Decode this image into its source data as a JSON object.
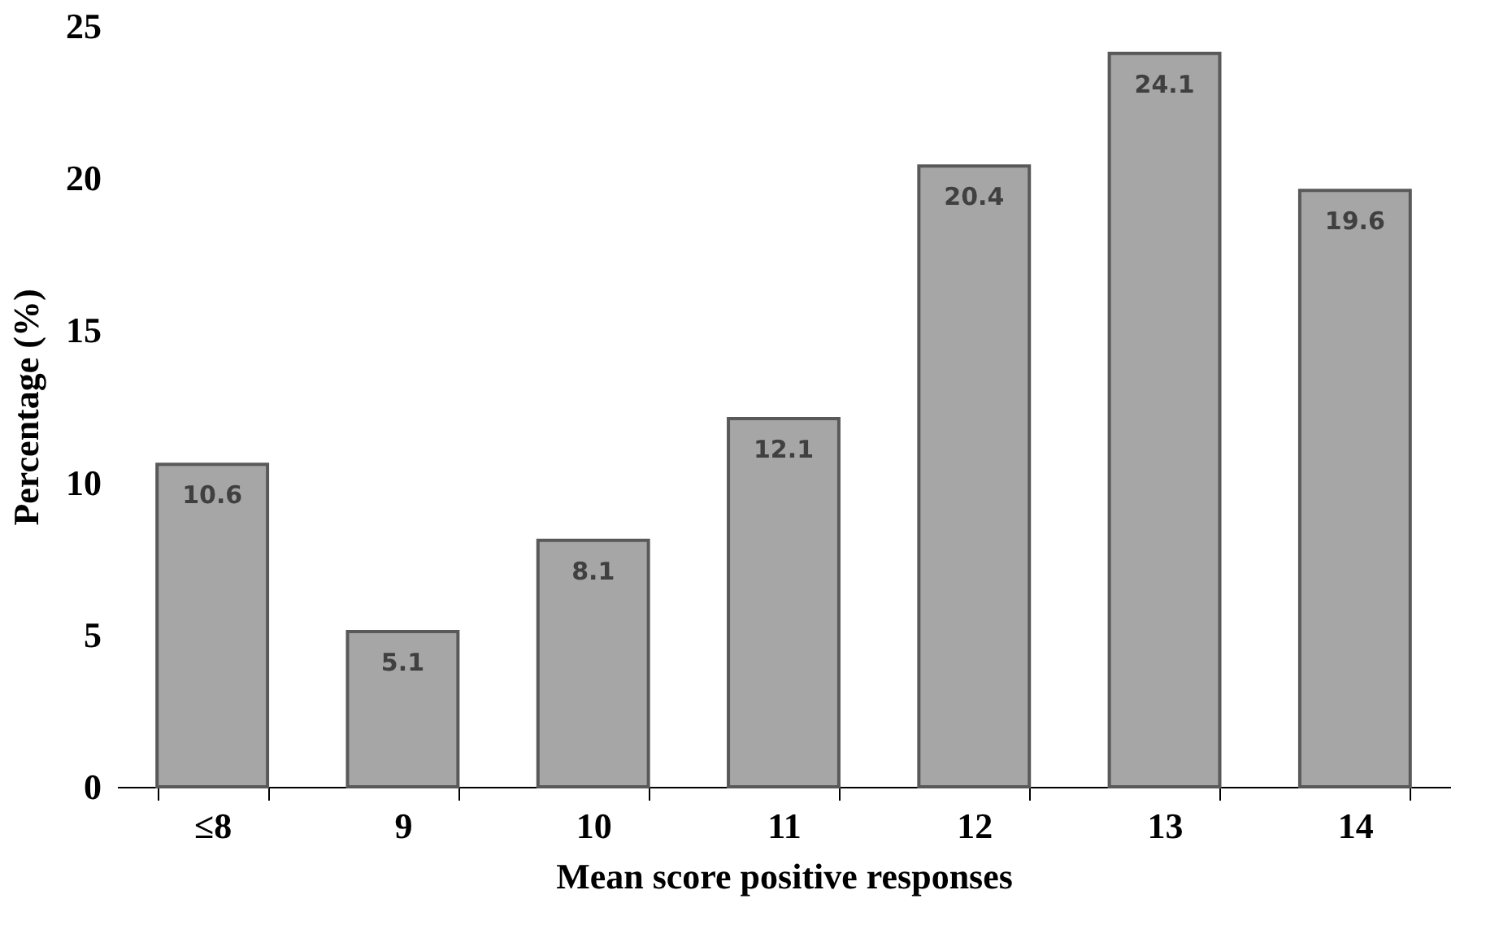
{
  "chart_data": {
    "type": "bar",
    "xlabel": "Mean score positive responses",
    "ylabel": "Percentage (%)",
    "categories": [
      "≤8",
      "9",
      "10",
      "11",
      "12",
      "13",
      "14"
    ],
    "values": [
      10.6,
      5.1,
      8.1,
      12.1,
      20.4,
      24.1,
      19.6
    ],
    "color": "#a6a6a6",
    "ylim": [
      0,
      25
    ],
    "yticks": [
      0,
      5,
      10,
      15,
      20,
      25
    ],
    "data_labels": true,
    "grid": false
  }
}
